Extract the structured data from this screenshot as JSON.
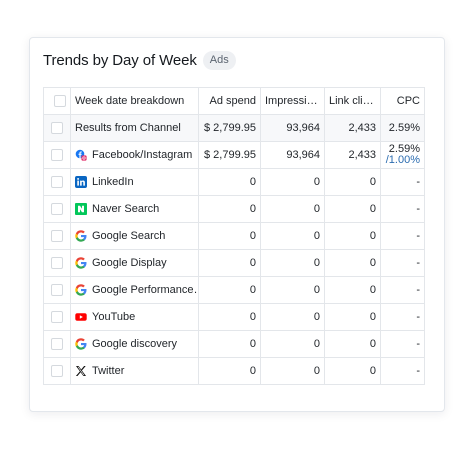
{
  "card": {
    "title": "Trends by Day of Week",
    "badge": "Ads"
  },
  "table": {
    "headers": {
      "name": "Week date breakdown",
      "ad_spend": "Ad spend",
      "impressions": "Impressions",
      "link_clicks": "Link clicks",
      "cpc": "CPC"
    },
    "rows": [
      {
        "name": "Results from Channel",
        "icon": "",
        "ad_spend": "$ 2,799.95",
        "impressions": "93,964",
        "link_clicks": "2,433",
        "cpc": "2.59%",
        "cpc_sub": ""
      },
      {
        "name": "Facebook/Instagram",
        "icon": "facebook-instagram-icon",
        "ad_spend": "$ 2,799.95",
        "impressions": "93,964",
        "link_clicks": "2,433",
        "cpc": "2.59%",
        "cpc_sub": "/1.00%"
      },
      {
        "name": "LinkedIn",
        "icon": "linkedin-icon",
        "ad_spend": "0",
        "impressions": "0",
        "link_clicks": "0",
        "cpc": "-",
        "cpc_sub": ""
      },
      {
        "name": "Naver Search",
        "icon": "naver-icon",
        "ad_spend": "0",
        "impressions": "0",
        "link_clicks": "0",
        "cpc": "-",
        "cpc_sub": ""
      },
      {
        "name": "Google Search",
        "icon": "google-icon",
        "ad_spend": "0",
        "impressions": "0",
        "link_clicks": "0",
        "cpc": "-",
        "cpc_sub": ""
      },
      {
        "name": "Google Display",
        "icon": "google-icon",
        "ad_spend": "0",
        "impressions": "0",
        "link_clicks": "0",
        "cpc": "-",
        "cpc_sub": ""
      },
      {
        "name": "Google Performance…",
        "icon": "google-icon",
        "ad_spend": "0",
        "impressions": "0",
        "link_clicks": "0",
        "cpc": "-",
        "cpc_sub": ""
      },
      {
        "name": "YouTube",
        "icon": "youtube-icon",
        "ad_spend": "0",
        "impressions": "0",
        "link_clicks": "0",
        "cpc": "-",
        "cpc_sub": ""
      },
      {
        "name": "Google discovery",
        "icon": "google-icon",
        "ad_spend": "0",
        "impressions": "0",
        "link_clicks": "0",
        "cpc": "-",
        "cpc_sub": ""
      },
      {
        "name": "Twitter",
        "icon": "x-twitter-icon",
        "ad_spend": "0",
        "impressions": "0",
        "link_clicks": "0",
        "cpc": "-",
        "cpc_sub": ""
      }
    ]
  }
}
